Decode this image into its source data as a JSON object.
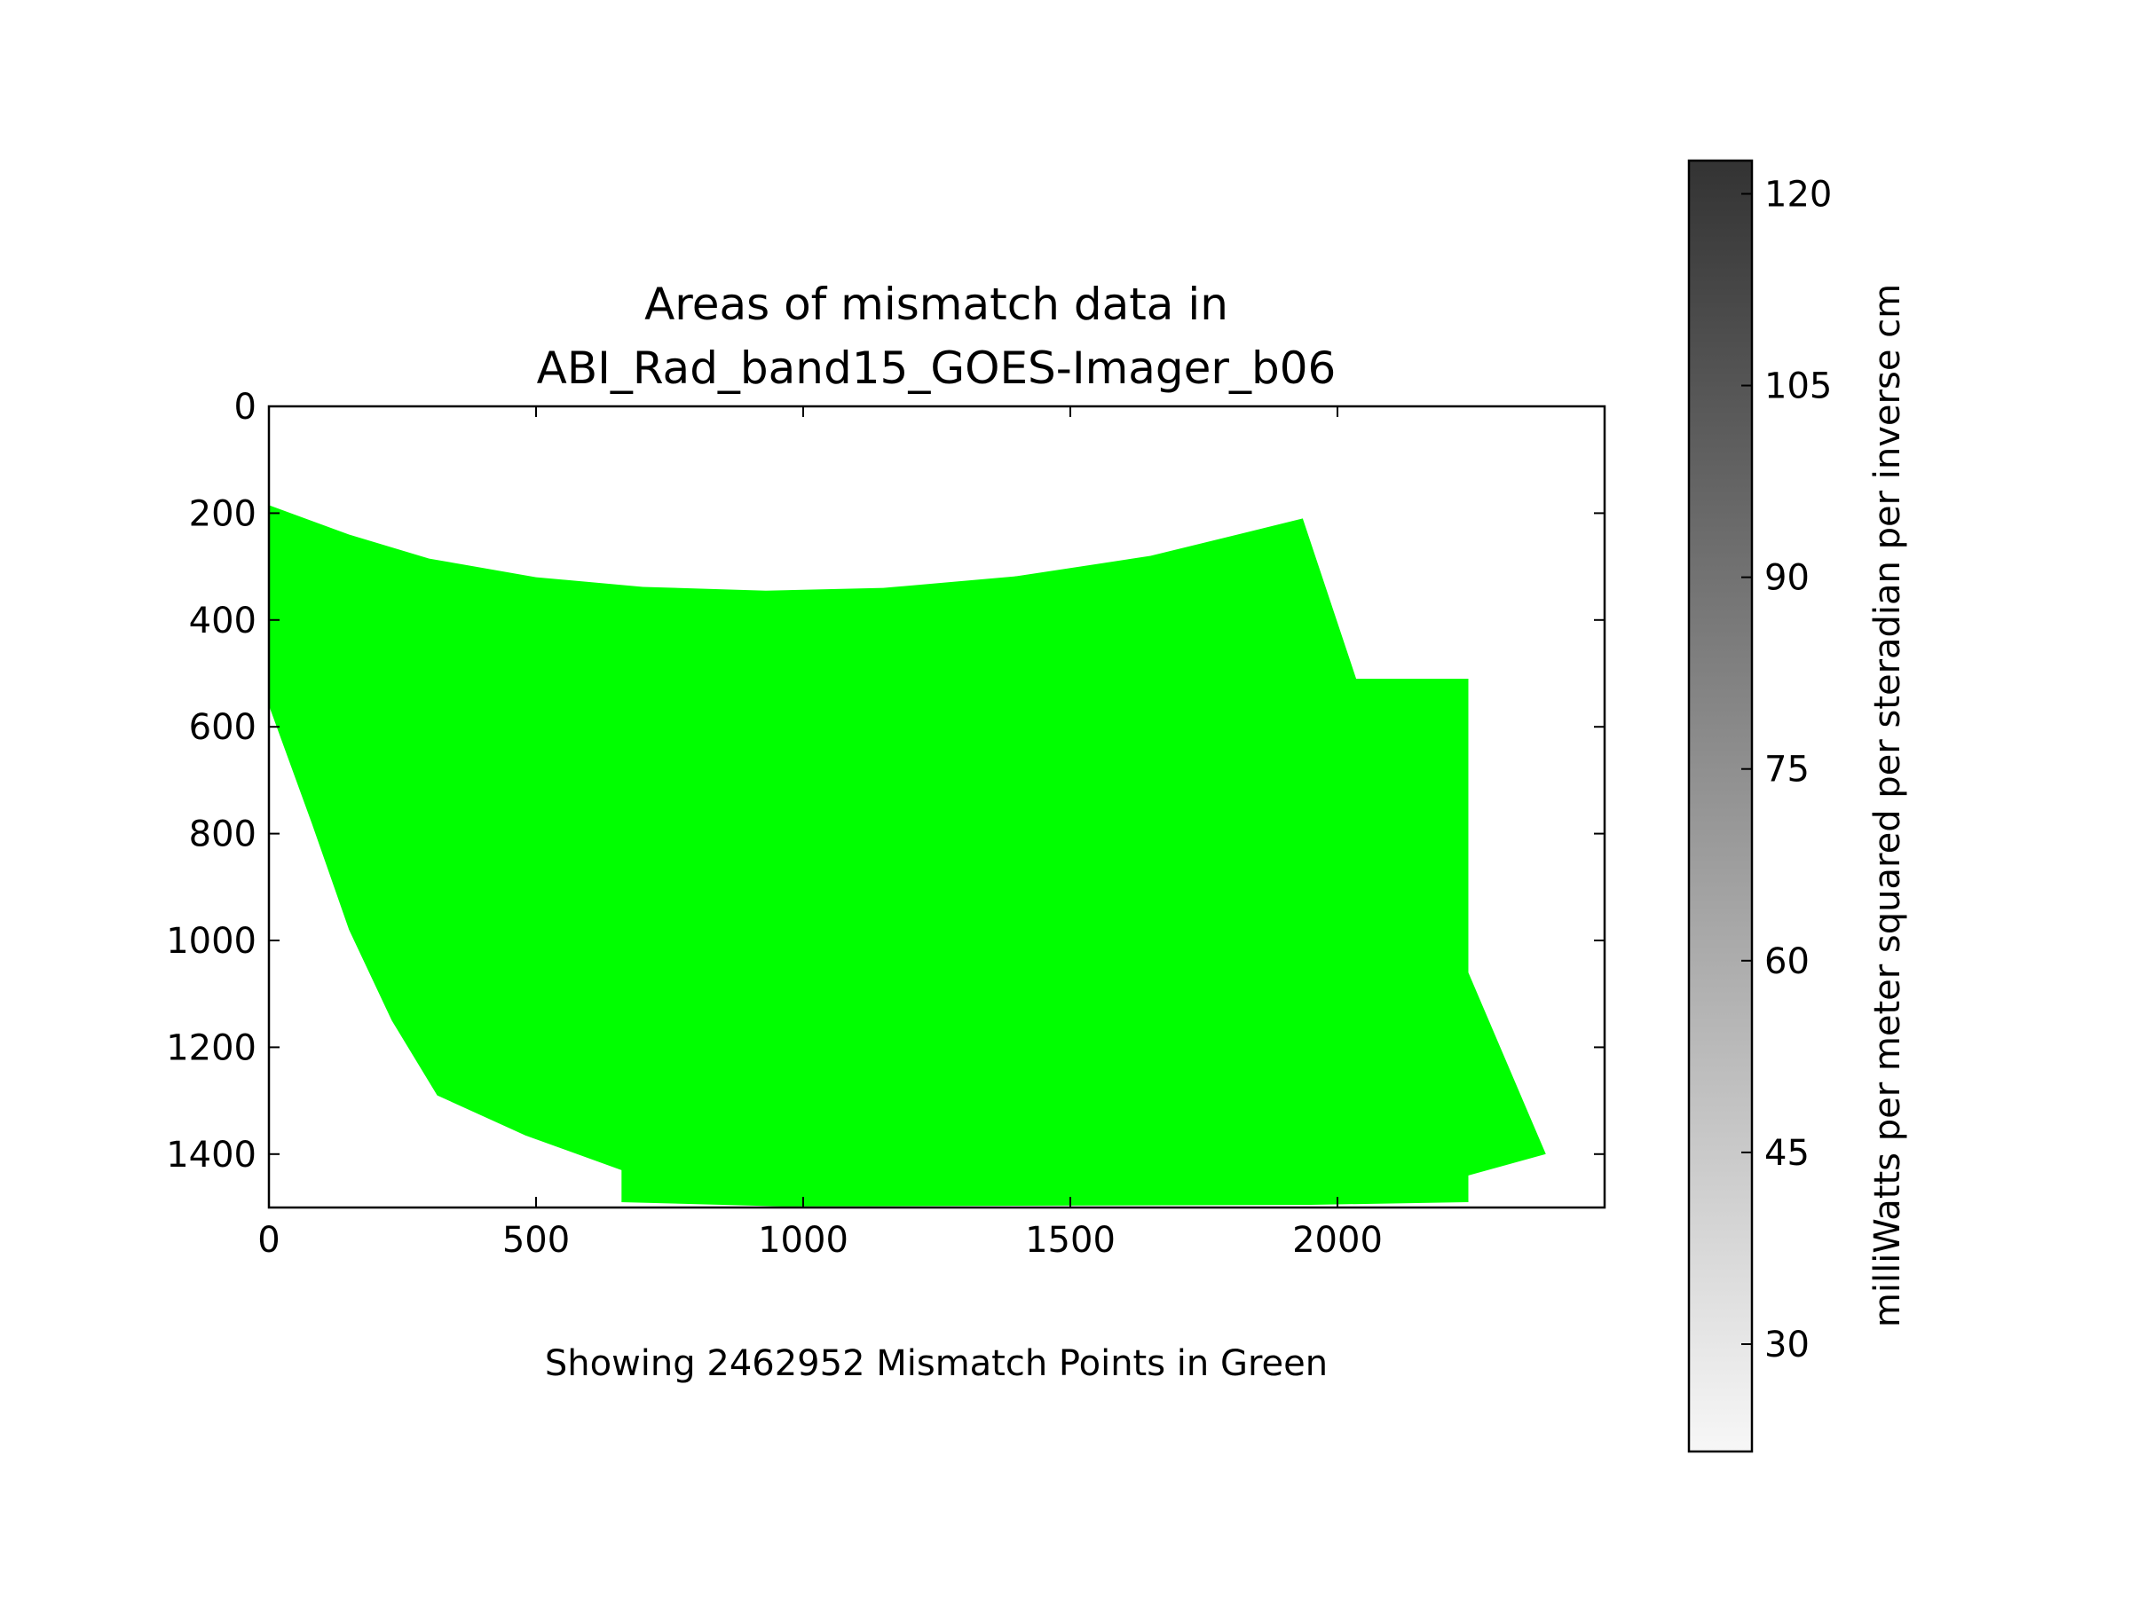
{
  "chart_data": {
    "type": "area",
    "title": "Areas of mismatch data in\nABI_Rad_band15_GOES-Imager_b06",
    "title_lines": [
      "Areas of mismatch data in",
      "ABI_Rad_band15_GOES-Imager_b06"
    ],
    "xlabel": "Showing 2462952 Mismatch Points in Green",
    "ylabel": "",
    "xlim": [
      0,
      2500
    ],
    "ylim": [
      1500,
      0
    ],
    "y_inverted": true,
    "x_ticks": [
      0,
      500,
      1000,
      1500,
      2000
    ],
    "y_ticks": [
      0,
      200,
      400,
      600,
      800,
      1000,
      1200,
      1400
    ],
    "grid": false,
    "mismatch_color": "#00ff00",
    "mismatch_region": [
      [
        0,
        185
      ],
      [
        150,
        240
      ],
      [
        300,
        285
      ],
      [
        500,
        320
      ],
      [
        700,
        338
      ],
      [
        930,
        345
      ],
      [
        1150,
        340
      ],
      [
        1400,
        318
      ],
      [
        1650,
        280
      ],
      [
        1935,
        210
      ],
      [
        2035,
        510
      ],
      [
        2245,
        510
      ],
      [
        2245,
        1060
      ],
      [
        2390,
        1400
      ],
      [
        2245,
        1440
      ],
      [
        2245,
        1490
      ],
      [
        1950,
        1495
      ],
      [
        960,
        1498
      ],
      [
        660,
        1490
      ],
      [
        660,
        1430
      ],
      [
        480,
        1365
      ],
      [
        315,
        1290
      ],
      [
        230,
        1150
      ],
      [
        150,
        980
      ],
      [
        80,
        780
      ],
      [
        0,
        560
      ]
    ],
    "colorbar": {
      "label": "milliWatts per meter squared per steradian per inverse cm",
      "range": [
        21.6,
        122.6
      ],
      "ticks": [
        30,
        45,
        60,
        75,
        90,
        105,
        120
      ],
      "colormap": "Greys",
      "color_low": "#f7f7f7",
      "color_high": "#333333"
    }
  }
}
